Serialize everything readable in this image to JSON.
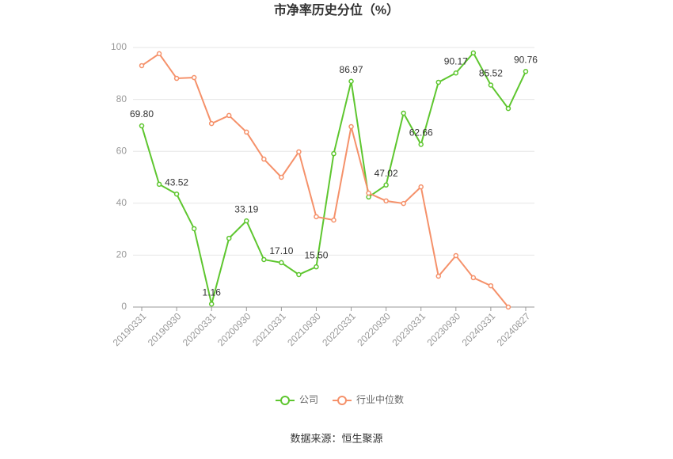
{
  "chart_data": {
    "type": "line",
    "title": "市净率历史分位（%）",
    "source": "数据来源：恒生聚源",
    "categories": [
      "20190331",
      null,
      "20190930",
      null,
      "20200331",
      null,
      "20200930",
      null,
      "20210331",
      null,
      "20210930",
      null,
      "20220331",
      null,
      "20220930",
      null,
      "20230331",
      null,
      "20230930",
      null,
      "20240331",
      null,
      "20240827"
    ],
    "series": [
      {
        "name": "公司",
        "color": "#5ec62f",
        "values": [
          69.8,
          47.3,
          43.52,
          30.2,
          1.16,
          26.5,
          33.19,
          18.3,
          17.1,
          12.5,
          15.5,
          59.1,
          86.97,
          42.4,
          47.02,
          74.7,
          62.66,
          86.6,
          90.17,
          97.9,
          85.52,
          76.5,
          90.76
        ],
        "value_labels": [
          "69.80",
          null,
          "43.52",
          null,
          "1.16",
          null,
          "33.19",
          null,
          "17.10",
          null,
          "15.50",
          null,
          "86.97",
          null,
          "47.02",
          null,
          "62.66",
          null,
          "90.17",
          null,
          "85.52",
          null,
          "90.76"
        ]
      },
      {
        "name": "行业中位数",
        "color": "#f5916a",
        "values": [
          93.0,
          97.6,
          88.1,
          88.4,
          70.7,
          73.8,
          67.4,
          57.0,
          50.0,
          59.8,
          34.8,
          33.5,
          69.5,
          43.9,
          40.9,
          39.9,
          46.3,
          11.9,
          19.8,
          11.3,
          8.2,
          0,
          null
        ]
      }
    ],
    "ylim": [
      0,
      100
    ],
    "yticks": [
      0,
      20,
      40,
      60,
      80,
      100
    ],
    "grid": true,
    "legend": "bottom"
  }
}
